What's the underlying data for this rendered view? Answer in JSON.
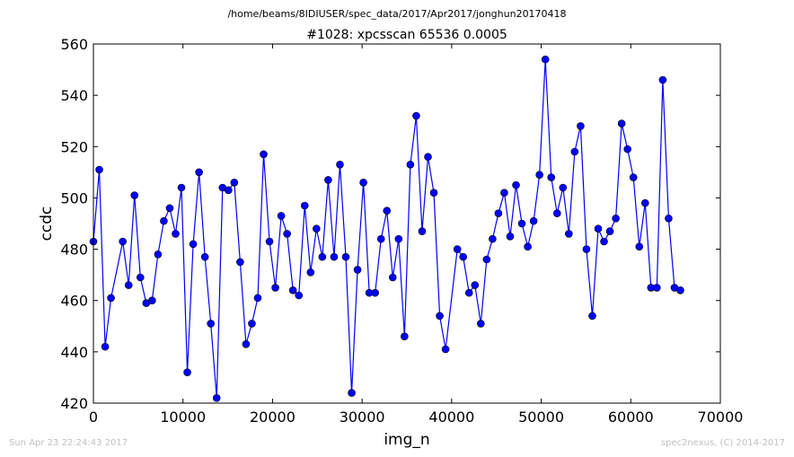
{
  "header": {
    "path": "/home/beams/8IDIUSER/spec_data/2017/Apr2017/jonghun20170418"
  },
  "footer": {
    "timestamp": "Sun Apr 23 22:24:43 2017",
    "credit": "spec2nexus, (C) 2014-2017"
  },
  "chart_data": {
    "type": "line",
    "title": "#1028: xpcsscan 65536 0.0005",
    "xlabel": "img_n",
    "ylabel": "ccdc",
    "xlim": [
      0,
      70000
    ],
    "ylim": [
      420,
      560
    ],
    "x_ticks": [
      "0",
      "10000",
      "20000",
      "30000",
      "40000",
      "50000",
      "60000",
      "70000"
    ],
    "y_ticks": [
      "420",
      "440",
      "460",
      "480",
      "500",
      "520",
      "540",
      "560"
    ],
    "grid": false,
    "line_color": "#0000ff",
    "marker_color": "#0000ff",
    "series": [
      {
        "x": [
          0,
          655,
          1311,
          1966,
          3277,
          3932,
          4588,
          5243,
          5898,
          6554,
          7209,
          7864,
          8520,
          9175,
          9830,
          10486,
          11141,
          11796,
          12452,
          13107,
          13763,
          14418,
          15073,
          15729,
          16384,
          17039,
          17695,
          18350,
          19005,
          19661,
          20316,
          20972,
          21627,
          22282,
          22938,
          23593,
          24248,
          24904,
          25559,
          26214,
          26870,
          27525,
          28180,
          28836,
          29491,
          30147,
          30802,
          31457,
          32113,
          32768,
          33423,
          34079,
          34734,
          35389,
          36045,
          36700,
          37356,
          38011,
          38666,
          39322,
          40632,
          41288,
          41943,
          42598,
          43254,
          43909,
          44565,
          45220,
          45875,
          46531,
          47186,
          47841,
          48497,
          49152,
          49807,
          50463,
          51118,
          51773,
          52429,
          53084,
          53740,
          54395,
          55050,
          55706,
          56361,
          57016,
          57672,
          58327,
          58982,
          59638,
          60293,
          60949,
          61604,
          62259,
          62915,
          63570,
          64225,
          64881,
          65536
        ],
        "y": [
          483,
          511,
          442,
          461,
          483,
          466,
          501,
          469,
          459,
          460,
          478,
          491,
          496,
          486,
          504,
          432,
          482,
          510,
          477,
          451,
          422,
          504,
          503,
          506,
          475,
          443,
          451,
          461,
          517,
          483,
          465,
          493,
          486,
          464,
          462,
          497,
          471,
          488,
          477,
          507,
          477,
          513,
          477,
          424,
          472,
          506,
          463,
          463,
          484,
          495,
          469,
          484,
          446,
          513,
          532,
          487,
          516,
          502,
          454,
          441,
          480,
          477,
          463,
          466,
          451,
          476,
          484,
          494,
          502,
          485,
          505,
          490,
          481,
          491,
          509,
          554,
          508,
          494,
          504,
          486,
          518,
          528,
          480,
          454,
          488,
          483,
          487,
          492,
          529,
          519,
          508,
          481,
          498,
          465,
          465,
          546,
          492,
          465,
          464
        ]
      }
    ]
  }
}
